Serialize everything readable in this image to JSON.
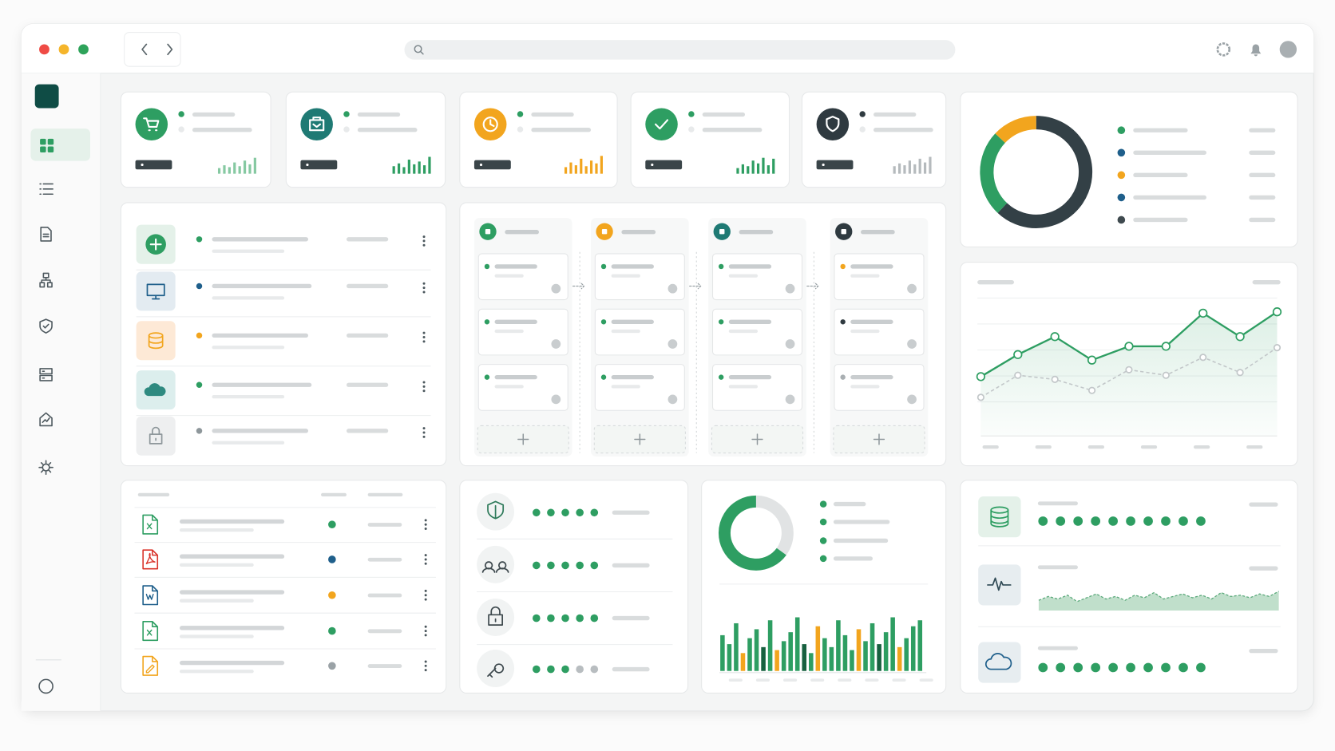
{
  "chart_data": [
    {
      "type": "donut",
      "values": [
        62,
        25,
        13
      ],
      "colors": [
        "#334046",
        "#2e9e62",
        "#f2a51e"
      ]
    },
    {
      "type": "line",
      "categories": [
        null,
        null,
        null,
        null,
        null,
        null,
        null,
        null,
        null
      ],
      "ylim": [
        0,
        100
      ],
      "grid": true,
      "series": [
        {
          "color": "#2e9e62",
          "values": [
            43,
            59,
            72,
            55,
            65,
            65,
            89,
            72,
            90
          ]
        },
        {
          "color": "#c2c7c9",
          "values": [
            28,
            44,
            41,
            33,
            48,
            44,
            57,
            46,
            64
          ]
        }
      ]
    },
    {
      "type": "donut",
      "values": [
        35,
        65
      ],
      "colors": [
        "#e1e3e4",
        "#2e9e62"
      ]
    },
    {
      "type": "bar",
      "ylim": [
        0,
        100
      ],
      "values": [
        60,
        45,
        80,
        30,
        55,
        70,
        40,
        85,
        35,
        50,
        65,
        90,
        45,
        30,
        75,
        55,
        40,
        85,
        60,
        35,
        70,
        50,
        80,
        45,
        65,
        90,
        40,
        55,
        75,
        85
      ],
      "colors": [
        "#2e9e62",
        "#2e9e62",
        "#2e9e62",
        "#f2a51e",
        "#2e9e62",
        "#2e9e62",
        "#17603f",
        "#2e9e62",
        "#f2a51e",
        "#2e9e62",
        "#2e9e62",
        "#2e9e62",
        "#17603f",
        "#2e9e62",
        "#f2a51e",
        "#2e9e62",
        "#2e9e62",
        "#2e9e62",
        "#2e9e62",
        "#2e9e62",
        "#f2a51e",
        "#2e9e62",
        "#2e9e62",
        "#17603f",
        "#2e9e62",
        "#2e9e62",
        "#f2a51e",
        "#2e9e62",
        "#2e9e62",
        "#2e9e62"
      ]
    },
    {
      "type": "bar",
      "ylim": [
        0,
        100
      ],
      "color": "#86c9a2",
      "values": [
        30,
        45,
        35,
        60,
        40,
        70,
        50,
        85
      ]
    },
    {
      "type": "bar",
      "ylim": [
        0,
        100
      ],
      "color": "#2e9e62",
      "values": [
        40,
        55,
        35,
        75,
        50,
        65,
        45,
        90
      ]
    },
    {
      "type": "bar",
      "ylim": [
        0,
        100
      ],
      "color": "#f2a51e",
      "values": [
        35,
        60,
        45,
        80,
        40,
        70,
        55,
        95
      ]
    },
    {
      "type": "bar",
      "ylim": [
        0,
        100
      ],
      "color": "#2e9e62",
      "values": [
        30,
        50,
        40,
        70,
        55,
        85,
        45,
        80
      ]
    },
    {
      "type": "bar",
      "ylim": [
        0,
        100
      ],
      "color": "#b5babd",
      "values": [
        40,
        55,
        45,
        70,
        50,
        80,
        60,
        90
      ]
    },
    {
      "type": "area",
      "ylim": [
        0,
        100
      ],
      "color": "#8cc5a0",
      "values": [
        40,
        55,
        45,
        60,
        35,
        50,
        65,
        45,
        55,
        40,
        60,
        50,
        70,
        45,
        55,
        65,
        50,
        60,
        45,
        70,
        55,
        60,
        50,
        65,
        55,
        75
      ]
    }
  ]
}
